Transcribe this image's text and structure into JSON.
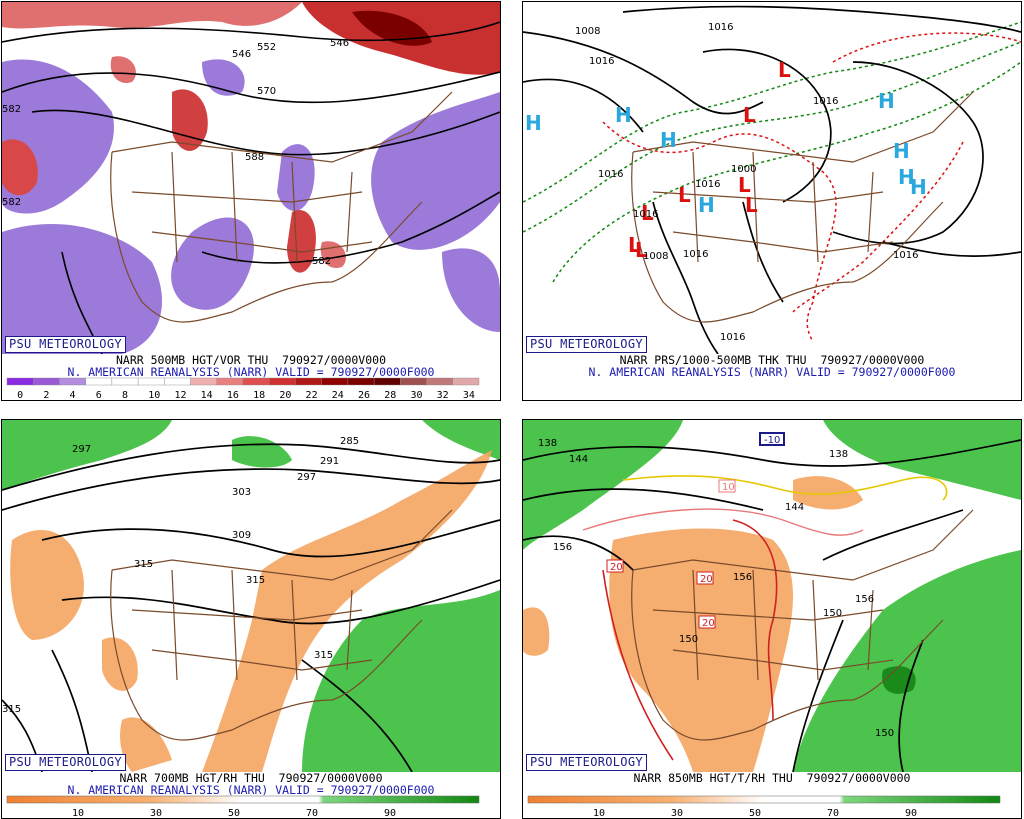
{
  "badge": "PSU METEOROLOGY",
  "panels": {
    "p1": {
      "line1": "NARR 500MB HGT/VOR THU  790927/0000V000",
      "line2": "N. AMERICAN REANALYSIS (NARR) VALID = 790927/0000F000",
      "scale_labels": [
        "0",
        "2",
        "4",
        "6",
        "8",
        "10",
        "12",
        "14",
        "16",
        "18",
        "20",
        "22",
        "24",
        "26",
        "28",
        "30",
        "32",
        "34"
      ],
      "scale_colors": [
        "#8a2be2",
        "#9b59d6",
        "#b48ce0",
        "#ffffff",
        "#ffffff",
        "#ffffff",
        "#ffffff",
        "#f0b0b0",
        "#e88080",
        "#e05050",
        "#d03030",
        "#b01818",
        "#900000",
        "#780000",
        "#600000",
        "#a05050",
        "#c07878",
        "#e0a8a8"
      ],
      "contour_labels": [
        "552",
        "570",
        "588",
        "582",
        "582",
        "582",
        "546",
        "546"
      ]
    },
    "p2": {
      "line1": "NARR PRS/1000-500MB THK THU  790927/0000V000",
      "line2": "N. AMERICAN REANALYSIS (NARR) VALID = 790927/0000F000",
      "highs": [
        "H",
        "H",
        "H",
        "H",
        "H",
        "H",
        "H",
        "H"
      ],
      "lows": [
        "L",
        "L",
        "L",
        "L",
        "L",
        "L",
        "L",
        "L"
      ],
      "pressure_labels": [
        "1016",
        "1008",
        "1016",
        "1000",
        "1016",
        "1016",
        "1016",
        "1016",
        "1008",
        "1016",
        "1016",
        "1016"
      ]
    },
    "p3": {
      "line1": "NARR 700MB HGT/RH THU  790927/0000V000",
      "line2": "N. AMERICAN REANALYSIS (NARR) VALID = 790927/0000F000",
      "scale_labels": [
        "10",
        "30",
        "50",
        "70",
        "90"
      ],
      "contour_labels": [
        "297",
        "285",
        "291",
        "297",
        "303",
        "309",
        "315",
        "315",
        "315",
        "315"
      ]
    },
    "p4": {
      "line1": "NARR 850MB HGT/T/RH THU  790927/0000V000",
      "scale_labels": [
        "10",
        "30",
        "50",
        "70",
        "90"
      ],
      "contour_labels": [
        "138",
        "144",
        "138",
        "144",
        "156",
        "156",
        "150",
        "150",
        "156",
        "150"
      ],
      "temp_labels": [
        "-10",
        "10",
        "20",
        "20",
        "20"
      ]
    }
  }
}
